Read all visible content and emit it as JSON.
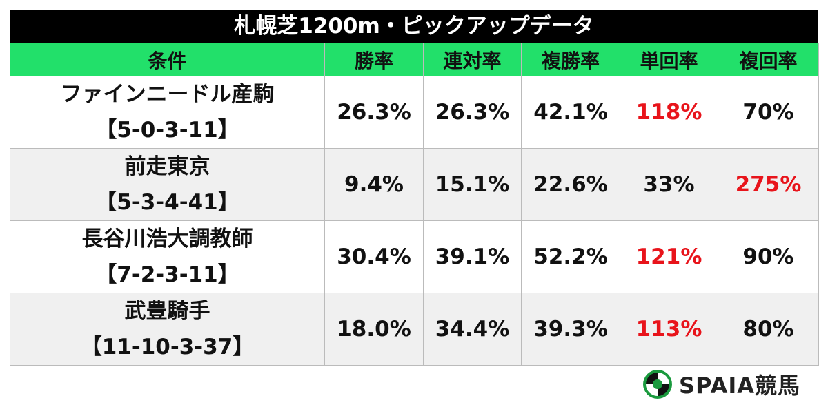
{
  "title": "札幌芝1200m・ピックアップデータ",
  "table": {
    "header": [
      "条件",
      "勝率",
      "連対率",
      "複勝率",
      "単回率",
      "複回率"
    ],
    "rows": [
      {
        "name": "ファインニードル産駒",
        "record": "【5-0-3-11】",
        "cells": [
          "26.3%",
          "26.3%",
          "42.1%",
          "118%",
          "70%"
        ]
      },
      {
        "name": "前走東京",
        "record": "【5-3-4-41】",
        "cells": [
          "9.4%",
          "15.1%",
          "22.6%",
          "33%",
          "275%"
        ]
      },
      {
        "name": "長谷川浩大調教師",
        "record": "【7-2-3-11】",
        "cells": [
          "30.4%",
          "39.1%",
          "52.2%",
          "121%",
          "90%"
        ]
      },
      {
        "name": "武豊騎手",
        "record": "【11-10-3-37】",
        "cells": [
          "18.0%",
          "34.4%",
          "39.3%",
          "113%",
          "80%"
        ]
      }
    ],
    "highlight": [
      [
        0,
        3
      ],
      [
        1,
        4
      ],
      [
        2,
        3
      ],
      [
        3,
        3
      ]
    ],
    "highlight_color": "#e8141b"
  },
  "logo": "SPAIA競馬"
}
